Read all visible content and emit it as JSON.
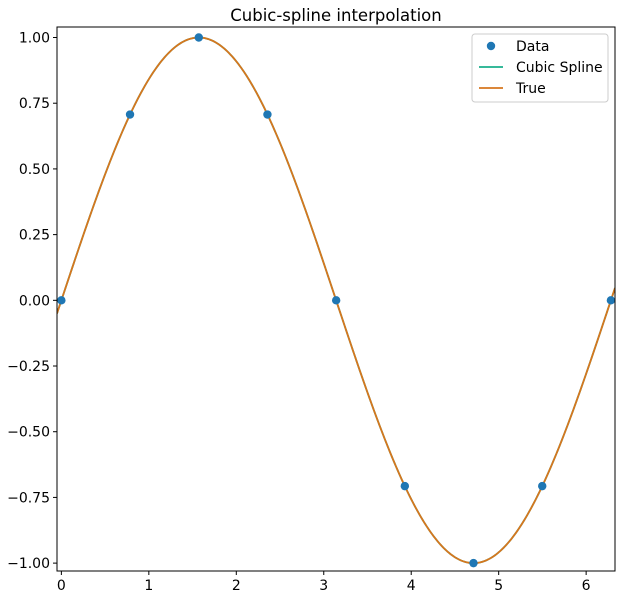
{
  "chart_data": {
    "type": "line",
    "title": "Cubic-spline interpolation",
    "xlabel": "",
    "ylabel": "",
    "xlim": [
      -0.05,
      6.33
    ],
    "ylim": [
      -1.03,
      1.04
    ],
    "x_ticks": [
      0,
      1,
      2,
      3,
      4,
      5,
      6
    ],
    "x_tick_labels": [
      "0",
      "1",
      "2",
      "3",
      "4",
      "5",
      "6"
    ],
    "y_ticks": [
      1.0,
      0.75,
      0.5,
      0.25,
      0.0,
      -0.25,
      -0.5,
      -0.75,
      -1.0
    ],
    "y_tick_labels": [
      "1.00",
      "0.75",
      "0.50",
      "0.25",
      "0.00",
      "−0.25",
      "−0.50",
      "−0.75",
      "−1.00"
    ],
    "grid": false,
    "legend_position": "top-right",
    "series": [
      {
        "name": "Data",
        "type": "scatter",
        "color": "#1f77b4",
        "x": [
          0,
          0.785,
          1.571,
          2.356,
          3.142,
          3.927,
          4.712,
          5.498,
          6.283
        ],
        "y": [
          0.0,
          0.707,
          1.0,
          0.707,
          0.0,
          -0.707,
          -1.0,
          -0.707,
          0.0
        ]
      },
      {
        "name": "Cubic Spline",
        "type": "line",
        "color": "#1aaf8b",
        "x_range": [
          -0.05,
          6.33
        ],
        "function": "sin"
      },
      {
        "name": "True",
        "type": "line",
        "color": "#d6761e",
        "x_range": [
          -0.05,
          6.33
        ],
        "function": "sin"
      }
    ]
  }
}
